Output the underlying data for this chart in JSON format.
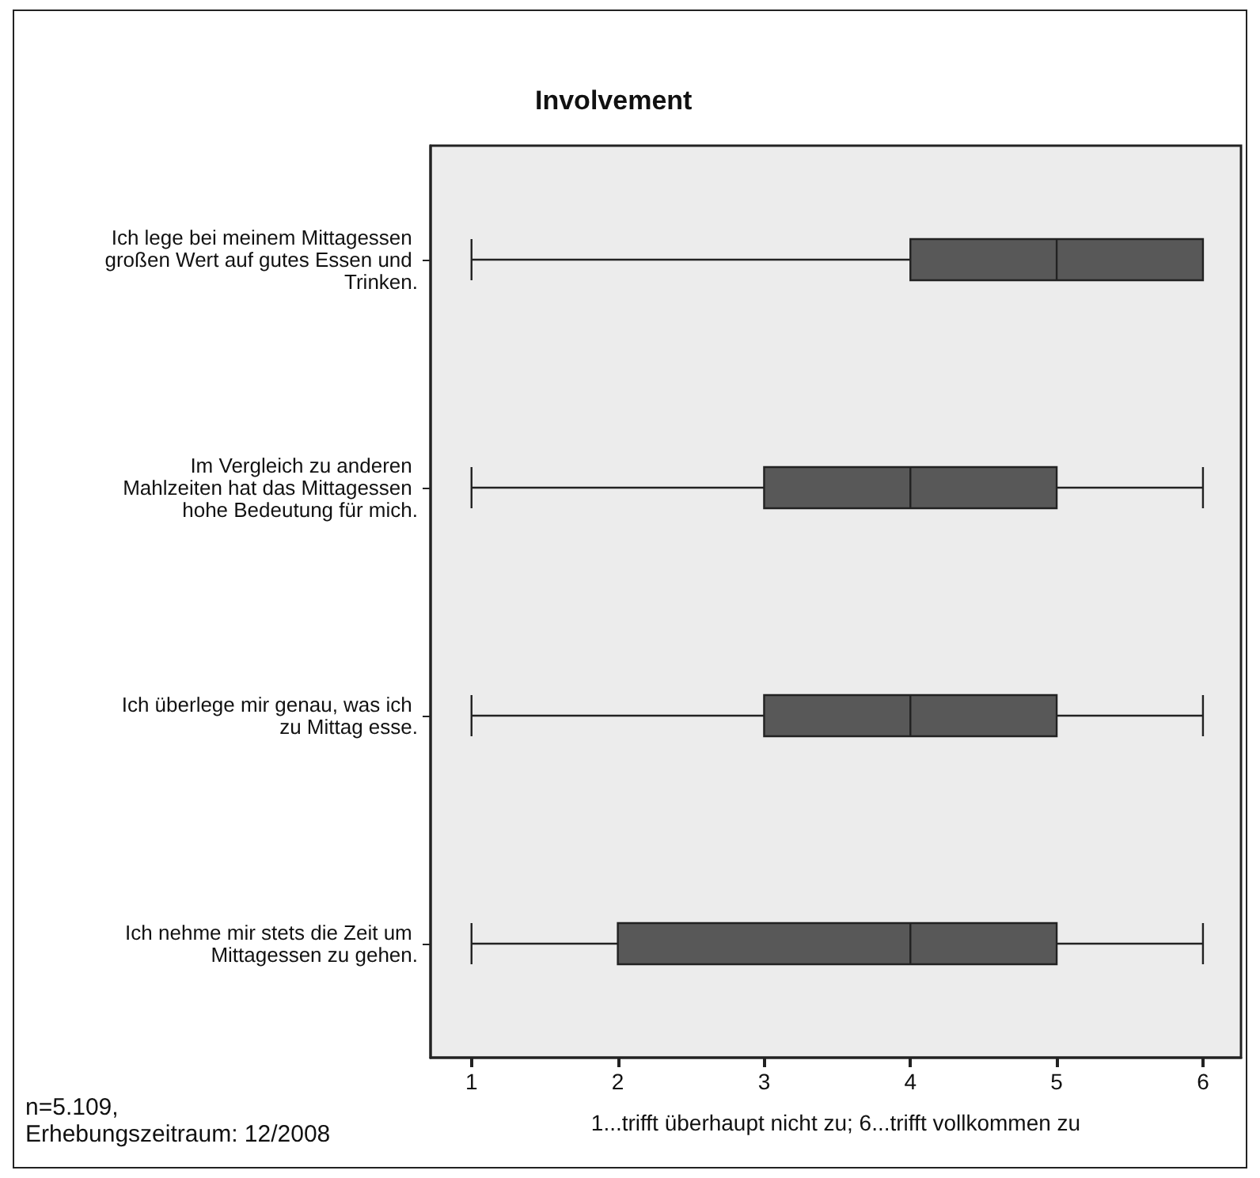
{
  "chart_data": {
    "type": "box",
    "title": "Involvement",
    "xlabel": "1...trifft überhaupt nicht zu; 6...trifft vollkommen zu",
    "annotations": [
      "n=5.109,",
      "Erhebungszeitraum: 12/2008"
    ],
    "orientation": "horizontal",
    "color": "#585858",
    "categories": [
      "Ich lege bei meinem Mittagessen großen Wert auf gutes Essen und Trinken.",
      "Im Vergleich zu anderen Mahlzeiten hat das Mittagessen hohe Bedeutung für mich.",
      "Ich überlege mir genau, was ich zu Mittag esse.",
      "Ich nehme mir stets die Zeit um Mittagessen zu gehen."
    ],
    "boxes": [
      {
        "low": 1,
        "q1": 4,
        "median": 5,
        "q3": 6,
        "high": 6
      },
      {
        "low": 1,
        "q1": 3,
        "median": 4,
        "q3": 5,
        "high": 6
      },
      {
        "low": 1,
        "q1": 3,
        "median": 4,
        "q3": 5,
        "high": 6
      },
      {
        "low": 1,
        "q1": 2,
        "median": 4,
        "q3": 5,
        "high": 6
      }
    ],
    "xlim": [
      0.72,
      6.26
    ],
    "xticks": [
      1,
      2,
      3,
      4,
      5,
      6
    ]
  }
}
